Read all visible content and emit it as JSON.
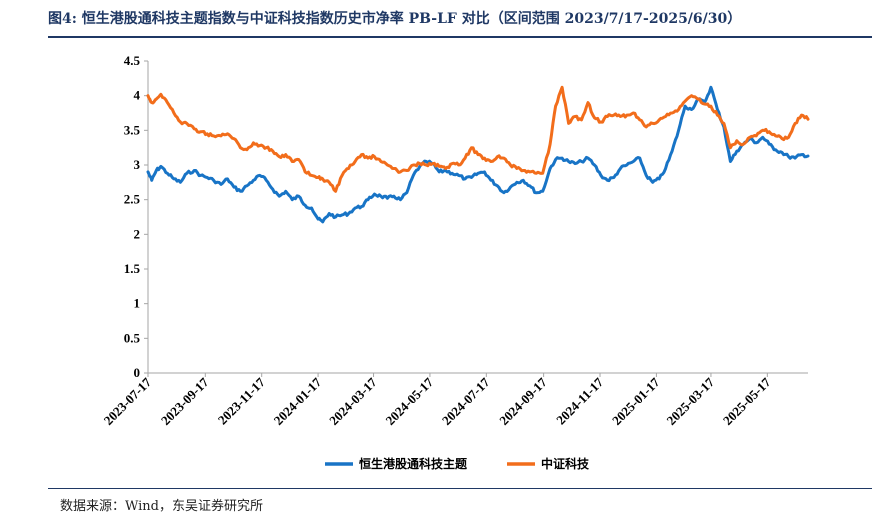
{
  "figure": {
    "title": "图4:  恒生港股通科技主题指数与中证科技指数历史市净率 PB-LF 对比（区间范围 2023/7/17-2025/6/30）",
    "source": "数据来源：Wind，东吴证券研究所"
  },
  "colors": {
    "series1": "#1874c6",
    "series2": "#f26d1b",
    "axis": "#a6a6a6",
    "title": "#1f3864"
  },
  "chart_data": {
    "type": "line",
    "title": "",
    "xlabel": "",
    "ylabel": "",
    "x_range": [
      "2023-07-17",
      "2025-06-30"
    ],
    "ylim": [
      0,
      4.5
    ],
    "yticks": [
      "0",
      "0.5",
      "1",
      "1.5",
      "2",
      "2.5",
      "3",
      "3.5",
      "4",
      "4.5"
    ],
    "xticks": [
      "2023-07-17",
      "2023-09-17",
      "2023-11-17",
      "2024-01-17",
      "2024-03-17",
      "2024-05-17",
      "2024-07-17",
      "2024-09-17",
      "2024-11-17",
      "2025-01-17",
      "2025-03-17",
      "2025-05-17"
    ],
    "grid": false,
    "legend": "bottom",
    "series": [
      {
        "name": "恒生港股通科技主题",
        "color": "#1874c6",
        "points": [
          [
            "2023-07-17",
            2.9
          ],
          [
            "2023-07-21",
            2.78
          ],
          [
            "2023-07-26",
            2.92
          ],
          [
            "2023-07-31",
            2.98
          ],
          [
            "2023-08-07",
            2.88
          ],
          [
            "2023-08-14",
            2.8
          ],
          [
            "2023-08-21",
            2.75
          ],
          [
            "2023-08-28",
            2.88
          ],
          [
            "2023-09-05",
            2.92
          ],
          [
            "2023-09-12",
            2.85
          ],
          [
            "2023-09-19",
            2.82
          ],
          [
            "2023-09-26",
            2.78
          ],
          [
            "2023-10-04",
            2.72
          ],
          [
            "2023-10-11",
            2.8
          ],
          [
            "2023-10-18",
            2.68
          ],
          [
            "2023-10-25",
            2.62
          ],
          [
            "2023-11-01",
            2.7
          ],
          [
            "2023-11-08",
            2.78
          ],
          [
            "2023-11-15",
            2.85
          ],
          [
            "2023-11-22",
            2.78
          ],
          [
            "2023-11-29",
            2.65
          ],
          [
            "2023-12-06",
            2.55
          ],
          [
            "2023-12-13",
            2.62
          ],
          [
            "2023-12-20",
            2.5
          ],
          [
            "2023-12-27",
            2.55
          ],
          [
            "2024-01-03",
            2.42
          ],
          [
            "2024-01-10",
            2.38
          ],
          [
            "2024-01-17",
            2.22
          ],
          [
            "2024-01-22",
            2.18
          ],
          [
            "2024-01-29",
            2.3
          ],
          [
            "2024-02-05",
            2.25
          ],
          [
            "2024-02-12",
            2.28
          ],
          [
            "2024-02-19",
            2.3
          ],
          [
            "2024-02-26",
            2.38
          ],
          [
            "2024-03-04",
            2.4
          ],
          [
            "2024-03-11",
            2.5
          ],
          [
            "2024-03-18",
            2.58
          ],
          [
            "2024-03-25",
            2.55
          ],
          [
            "2024-04-01",
            2.52
          ],
          [
            "2024-04-08",
            2.55
          ],
          [
            "2024-04-15",
            2.5
          ],
          [
            "2024-04-22",
            2.6
          ],
          [
            "2024-04-29",
            2.85
          ],
          [
            "2024-05-06",
            2.98
          ],
          [
            "2024-05-13",
            3.05
          ],
          [
            "2024-05-20",
            3.02
          ],
          [
            "2024-05-27",
            2.9
          ],
          [
            "2024-06-03",
            2.92
          ],
          [
            "2024-06-10",
            2.88
          ],
          [
            "2024-06-17",
            2.85
          ],
          [
            "2024-06-24",
            2.8
          ],
          [
            "2024-07-01",
            2.82
          ],
          [
            "2024-07-08",
            2.88
          ],
          [
            "2024-07-15",
            2.9
          ],
          [
            "2024-07-22",
            2.78
          ],
          [
            "2024-07-29",
            2.7
          ],
          [
            "2024-08-05",
            2.6
          ],
          [
            "2024-08-12",
            2.68
          ],
          [
            "2024-08-19",
            2.75
          ],
          [
            "2024-08-26",
            2.78
          ],
          [
            "2024-09-02",
            2.7
          ],
          [
            "2024-09-09",
            2.6
          ],
          [
            "2024-09-16",
            2.62
          ],
          [
            "2024-09-24",
            2.95
          ],
          [
            "2024-09-30",
            3.08
          ],
          [
            "2024-10-07",
            3.1
          ],
          [
            "2024-10-14",
            3.05
          ],
          [
            "2024-10-21",
            3.02
          ],
          [
            "2024-10-28",
            3.05
          ],
          [
            "2024-11-04",
            3.1
          ],
          [
            "2024-11-11",
            3.0
          ],
          [
            "2024-11-18",
            2.85
          ],
          [
            "2024-11-25",
            2.78
          ],
          [
            "2024-12-02",
            2.82
          ],
          [
            "2024-12-09",
            2.95
          ],
          [
            "2024-12-16",
            3.0
          ],
          [
            "2024-12-23",
            3.05
          ],
          [
            "2024-12-30",
            3.1
          ],
          [
            "2025-01-06",
            2.85
          ],
          [
            "2025-01-13",
            2.75
          ],
          [
            "2025-01-20",
            2.8
          ],
          [
            "2025-01-27",
            2.95
          ],
          [
            "2025-02-03",
            3.2
          ],
          [
            "2025-02-10",
            3.5
          ],
          [
            "2025-02-17",
            3.85
          ],
          [
            "2025-02-24",
            3.8
          ],
          [
            "2025-03-03",
            3.95
          ],
          [
            "2025-03-10",
            3.9
          ],
          [
            "2025-03-17",
            4.12
          ],
          [
            "2025-03-24",
            3.8
          ],
          [
            "2025-03-31",
            3.55
          ],
          [
            "2025-04-07",
            3.05
          ],
          [
            "2025-04-14",
            3.2
          ],
          [
            "2025-04-21",
            3.3
          ],
          [
            "2025-04-28",
            3.38
          ],
          [
            "2025-05-05",
            3.32
          ],
          [
            "2025-05-12",
            3.4
          ],
          [
            "2025-05-19",
            3.3
          ],
          [
            "2025-05-26",
            3.22
          ],
          [
            "2025-06-02",
            3.18
          ],
          [
            "2025-06-09",
            3.12
          ],
          [
            "2025-06-16",
            3.1
          ],
          [
            "2025-06-23",
            3.15
          ],
          [
            "2025-06-30",
            3.13
          ]
        ]
      },
      {
        "name": "中证科技",
        "color": "#f26d1b",
        "points": [
          [
            "2023-07-17",
            4.0
          ],
          [
            "2023-07-21",
            3.9
          ],
          [
            "2023-07-26",
            3.95
          ],
          [
            "2023-07-31",
            4.02
          ],
          [
            "2023-08-07",
            3.9
          ],
          [
            "2023-08-14",
            3.75
          ],
          [
            "2023-08-21",
            3.62
          ],
          [
            "2023-08-28",
            3.6
          ],
          [
            "2023-09-05",
            3.52
          ],
          [
            "2023-09-12",
            3.48
          ],
          [
            "2023-09-19",
            3.45
          ],
          [
            "2023-09-26",
            3.42
          ],
          [
            "2023-10-04",
            3.42
          ],
          [
            "2023-10-11",
            3.45
          ],
          [
            "2023-10-18",
            3.38
          ],
          [
            "2023-10-25",
            3.25
          ],
          [
            "2023-11-01",
            3.22
          ],
          [
            "2023-11-08",
            3.32
          ],
          [
            "2023-11-15",
            3.28
          ],
          [
            "2023-11-22",
            3.25
          ],
          [
            "2023-11-29",
            3.2
          ],
          [
            "2023-12-06",
            3.12
          ],
          [
            "2023-12-13",
            3.15
          ],
          [
            "2023-12-20",
            3.05
          ],
          [
            "2023-12-27",
            3.08
          ],
          [
            "2024-01-03",
            2.9
          ],
          [
            "2024-01-10",
            2.85
          ],
          [
            "2024-01-17",
            2.82
          ],
          [
            "2024-01-22",
            2.8
          ],
          [
            "2024-01-29",
            2.75
          ],
          [
            "2024-02-05",
            2.62
          ],
          [
            "2024-02-12",
            2.85
          ],
          [
            "2024-02-19",
            2.95
          ],
          [
            "2024-02-26",
            3.05
          ],
          [
            "2024-03-04",
            3.15
          ],
          [
            "2024-03-11",
            3.1
          ],
          [
            "2024-03-18",
            3.12
          ],
          [
            "2024-03-25",
            3.05
          ],
          [
            "2024-04-01",
            3.0
          ],
          [
            "2024-04-08",
            2.95
          ],
          [
            "2024-04-15",
            2.9
          ],
          [
            "2024-04-22",
            2.92
          ],
          [
            "2024-04-29",
            3.0
          ],
          [
            "2024-05-06",
            3.02
          ],
          [
            "2024-05-13",
            3.0
          ],
          [
            "2024-05-20",
            3.02
          ],
          [
            "2024-05-27",
            2.98
          ],
          [
            "2024-06-03",
            2.95
          ],
          [
            "2024-06-10",
            3.02
          ],
          [
            "2024-06-17",
            3.0
          ],
          [
            "2024-06-24",
            3.1
          ],
          [
            "2024-07-01",
            3.25
          ],
          [
            "2024-07-08",
            3.15
          ],
          [
            "2024-07-15",
            3.1
          ],
          [
            "2024-07-22",
            3.05
          ],
          [
            "2024-07-29",
            3.12
          ],
          [
            "2024-08-05",
            3.1
          ],
          [
            "2024-08-12",
            3.0
          ],
          [
            "2024-08-19",
            2.95
          ],
          [
            "2024-08-26",
            2.92
          ],
          [
            "2024-09-02",
            2.9
          ],
          [
            "2024-09-09",
            2.88
          ],
          [
            "2024-09-16",
            2.88
          ],
          [
            "2024-09-24",
            3.3
          ],
          [
            "2024-09-30",
            3.85
          ],
          [
            "2024-10-07",
            4.12
          ],
          [
            "2024-10-14",
            3.6
          ],
          [
            "2024-10-21",
            3.7
          ],
          [
            "2024-10-28",
            3.65
          ],
          [
            "2024-11-04",
            3.9
          ],
          [
            "2024-11-11",
            3.68
          ],
          [
            "2024-11-18",
            3.62
          ],
          [
            "2024-11-25",
            3.7
          ],
          [
            "2024-12-02",
            3.72
          ],
          [
            "2024-12-09",
            3.7
          ],
          [
            "2024-12-16",
            3.72
          ],
          [
            "2024-12-23",
            3.75
          ],
          [
            "2024-12-30",
            3.65
          ],
          [
            "2025-01-06",
            3.55
          ],
          [
            "2025-01-13",
            3.6
          ],
          [
            "2025-01-20",
            3.65
          ],
          [
            "2025-01-27",
            3.7
          ],
          [
            "2025-02-03",
            3.75
          ],
          [
            "2025-02-10",
            3.8
          ],
          [
            "2025-02-17",
            3.92
          ],
          [
            "2025-02-24",
            4.0
          ],
          [
            "2025-03-03",
            3.95
          ],
          [
            "2025-03-10",
            3.88
          ],
          [
            "2025-03-17",
            3.85
          ],
          [
            "2025-03-24",
            3.72
          ],
          [
            "2025-03-31",
            3.6
          ],
          [
            "2025-04-07",
            3.25
          ],
          [
            "2025-04-14",
            3.35
          ],
          [
            "2025-04-21",
            3.3
          ],
          [
            "2025-04-28",
            3.4
          ],
          [
            "2025-05-05",
            3.42
          ],
          [
            "2025-05-12",
            3.5
          ],
          [
            "2025-05-19",
            3.48
          ],
          [
            "2025-05-26",
            3.42
          ],
          [
            "2025-06-02",
            3.38
          ],
          [
            "2025-06-09",
            3.4
          ],
          [
            "2025-06-16",
            3.6
          ],
          [
            "2025-06-23",
            3.72
          ],
          [
            "2025-06-30",
            3.66
          ]
        ]
      }
    ]
  }
}
